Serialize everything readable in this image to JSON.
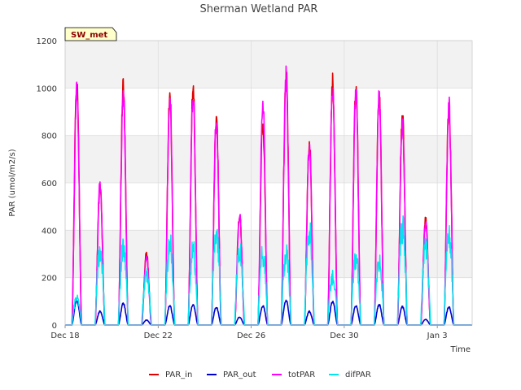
{
  "chart_data": {
    "type": "line",
    "title": "Sherman Wetland PAR",
    "xlabel": "Time",
    "ylabel": "PAR (umol/m2/s)",
    "badge": "SW_met",
    "ylim": [
      0,
      1200
    ],
    "yticks": [
      0,
      200,
      400,
      600,
      800,
      1000,
      1200
    ],
    "xlim": [
      "2023-12-18",
      "2024-01-04T12:00"
    ],
    "xticks": [
      {
        "date": "2023-12-18",
        "label": "Dec 18"
      },
      {
        "date": "2023-12-22",
        "label": "Dec 22"
      },
      {
        "date": "2023-12-26",
        "label": "Dec 26"
      },
      {
        "date": "2023-12-30",
        "label": "Dec 30"
      },
      {
        "date": "2024-01-03",
        "label": "Jan 3"
      }
    ],
    "grid": true,
    "legend_position": "bottom",
    "days": [
      "Dec 18",
      "Dec 19",
      "Dec 20",
      "Dec 21",
      "Dec 22",
      "Dec 23",
      "Dec 24",
      "Dec 25",
      "Dec 26",
      "Dec 27",
      "Dec 28",
      "Dec 29",
      "Dec 30",
      "Dec 31",
      "Jan 1",
      "Jan 2",
      "Jan 3",
      "Jan 4"
    ],
    "series": [
      {
        "name": "PAR_in",
        "color": "#e00000",
        "daily_peak": [
          1060,
          625,
          1050,
          315,
          1020,
          1045,
          920,
          495,
          900,
          1120,
          815,
          1070,
          1055,
          1010,
          925,
          460,
          970,
          0
        ]
      },
      {
        "name": "PAR_out",
        "color": "#0000cc",
        "daily_peak": [
          110,
          60,
          95,
          22,
          85,
          90,
          80,
          35,
          85,
          110,
          60,
          105,
          85,
          90,
          80,
          25,
          80,
          0
        ]
      },
      {
        "name": "totPAR",
        "color": "#ff00ff",
        "daily_peak": [
          1035,
          620,
          1030,
          300,
          1000,
          1035,
          905,
          490,
          995,
          1100,
          800,
          1050,
          1040,
          1000,
          900,
          455,
          975,
          0
        ]
      },
      {
        "name": "difPAR",
        "color": "#00e5ee",
        "daily_peak": [
          130,
          370,
          370,
          245,
          400,
          370,
          450,
          380,
          350,
          355,
          465,
          235,
          335,
          310,
          480,
          370,
          455,
          0
        ]
      }
    ]
  }
}
